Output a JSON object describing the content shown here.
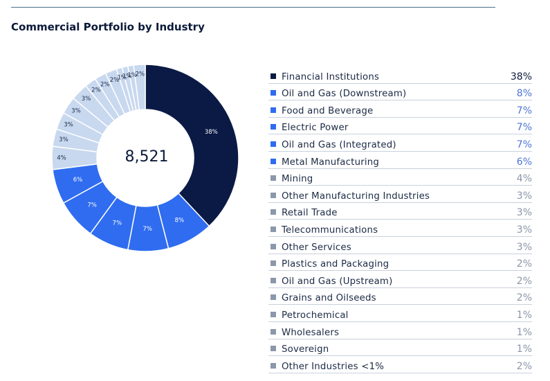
{
  "title": "Commercial Portfolio by Industry",
  "colors": {
    "dark": "#0b1a45",
    "blue": "#2f6cf0",
    "light": "#c8d8ef",
    "gray_swatch": "#8b98ab",
    "pct_dark": "#0b1a3a",
    "pct_blue": "#4b73d8",
    "pct_gray": "#8a95a8"
  },
  "chart_data": {
    "type": "pie",
    "title": "Commercial Portfolio by Industry",
    "center_label": "8,521",
    "slices": [
      {
        "label": "Financial Institutions",
        "pct_label": "38%",
        "value": 38,
        "group": "dark"
      },
      {
        "label": "Oil and Gas (Downstream)",
        "pct_label": "8%",
        "value": 8,
        "group": "blue"
      },
      {
        "label": "Food and Beverage",
        "pct_label": "7%",
        "value": 7,
        "group": "blue"
      },
      {
        "label": "Electric Power",
        "pct_label": "7%",
        "value": 7,
        "group": "blue"
      },
      {
        "label": "Oil and Gas (Integrated)",
        "pct_label": "7%",
        "value": 7,
        "group": "blue"
      },
      {
        "label": "Metal Manufacturing",
        "pct_label": "6%",
        "value": 6,
        "group": "blue"
      },
      {
        "label": "Mining",
        "pct_label": "4%",
        "value": 4,
        "group": "gray"
      },
      {
        "label": "Other Manufacturing Industries",
        "pct_label": "3%",
        "value": 3,
        "group": "gray"
      },
      {
        "label": "Retail Trade",
        "pct_label": "3%",
        "value": 3,
        "group": "gray"
      },
      {
        "label": "Telecommunications",
        "pct_label": "3%",
        "value": 3,
        "group": "gray"
      },
      {
        "label": "Other Services",
        "pct_label": "3%",
        "value": 3,
        "group": "gray"
      },
      {
        "label": "Plastics and Packaging",
        "pct_label": "2%",
        "value": 2,
        "group": "gray"
      },
      {
        "label": "Oil and Gas (Upstream)",
        "pct_label": "2%",
        "value": 2,
        "group": "gray"
      },
      {
        "label": "Grains and Oilseeds",
        "pct_label": "2%",
        "value": 2,
        "group": "gray"
      },
      {
        "label": "Petrochemical",
        "pct_label": "1%",
        "value": 1,
        "group": "gray"
      },
      {
        "label": "Wholesalers",
        "pct_label": "1%",
        "value": 1,
        "group": "gray"
      },
      {
        "label": "Sovereign",
        "pct_label": "1%",
        "value": 1,
        "group": "gray"
      },
      {
        "label": "Other Industries <1%",
        "pct_label": "2%",
        "value": 2,
        "group": "gray"
      }
    ]
  }
}
